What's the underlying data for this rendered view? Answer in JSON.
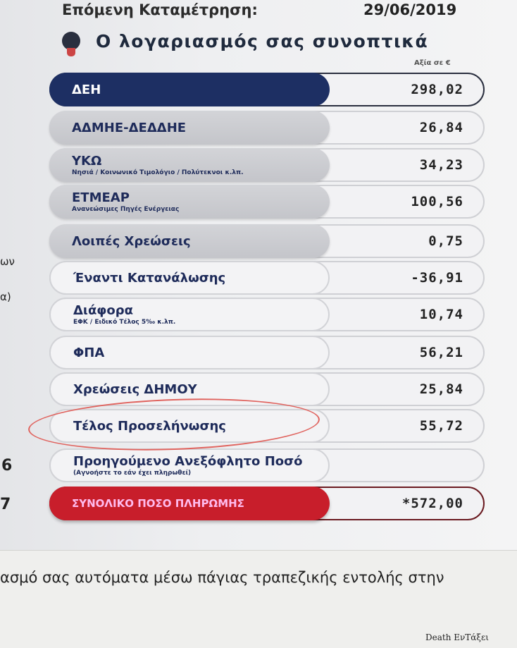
{
  "header": {
    "next_reading_label": "Επόμενη Καταμέτρηση:",
    "next_reading_date": "29/06/2019",
    "title": "Ο λογαριασμός σας συνοπτικά",
    "value_unit_label": "Αξία σε €"
  },
  "rows": [
    {
      "label": "ΔΕΗ",
      "sub": "",
      "value": "298,02",
      "style": "navy"
    },
    {
      "label": "ΑΔΜΗΕ-ΔΕΔΔΗΕ",
      "sub": "",
      "value": "26,84",
      "style": "gray"
    },
    {
      "label": "ΥΚΩ",
      "sub": "Νησιά / Κοινωνικό Τιμολόγιο / Πολύτεκνοι κ.λπ.",
      "value": "34,23",
      "style": "gray"
    },
    {
      "label": "ΕΤΜΕΑΡ",
      "sub": "Ανανεώσιμες Πηγές Ενέργειας",
      "value": "100,56",
      "style": "gray"
    },
    {
      "label": "Λοιπές Χρεώσεις",
      "sub": "",
      "value": "0,75",
      "style": "gray"
    },
    {
      "label": "Έναντι Κατανάλωσης",
      "sub": "",
      "value": "-36,91",
      "style": "white"
    },
    {
      "label": "Διάφορα",
      "sub": "ΕΦΚ / Ειδικό Τέλος 5‰ κ.λπ.",
      "value": "10,74",
      "style": "white"
    },
    {
      "label": "ΦΠΑ",
      "sub": "",
      "value": "56,21",
      "style": "white"
    },
    {
      "label": "Χρεώσεις ΔΗΜΟΥ",
      "sub": "",
      "value": "25,84",
      "style": "white"
    },
    {
      "label": "Τέλος Προσελήνωσης",
      "sub": "",
      "value": "55,72",
      "style": "white"
    },
    {
      "label": "Προηγούμενο Ανεξόφλητο Ποσό",
      "sub": "(Αγνοήστε το εάν έχει πληρωθεί)",
      "value": "",
      "style": "white"
    },
    {
      "label": "ΣΥΝΟΛΙΚΟ ΠΟΣΟ ΠΛΗΡΩΜΗΣ",
      "sub": "",
      "value": "*572,00",
      "style": "red"
    }
  ],
  "margin_fragments": [
    "ων",
    "α)",
    "6",
    "7"
  ],
  "footer_text": "ασμό σας αυτόματα μέσω πάγιας τραπεζικής εντολής στην",
  "watermark": "Death ΕνΤάξει",
  "colors": {
    "navy": "#1d2f63",
    "red": "#c81e2b",
    "highlight_circle": "#e0645f"
  }
}
